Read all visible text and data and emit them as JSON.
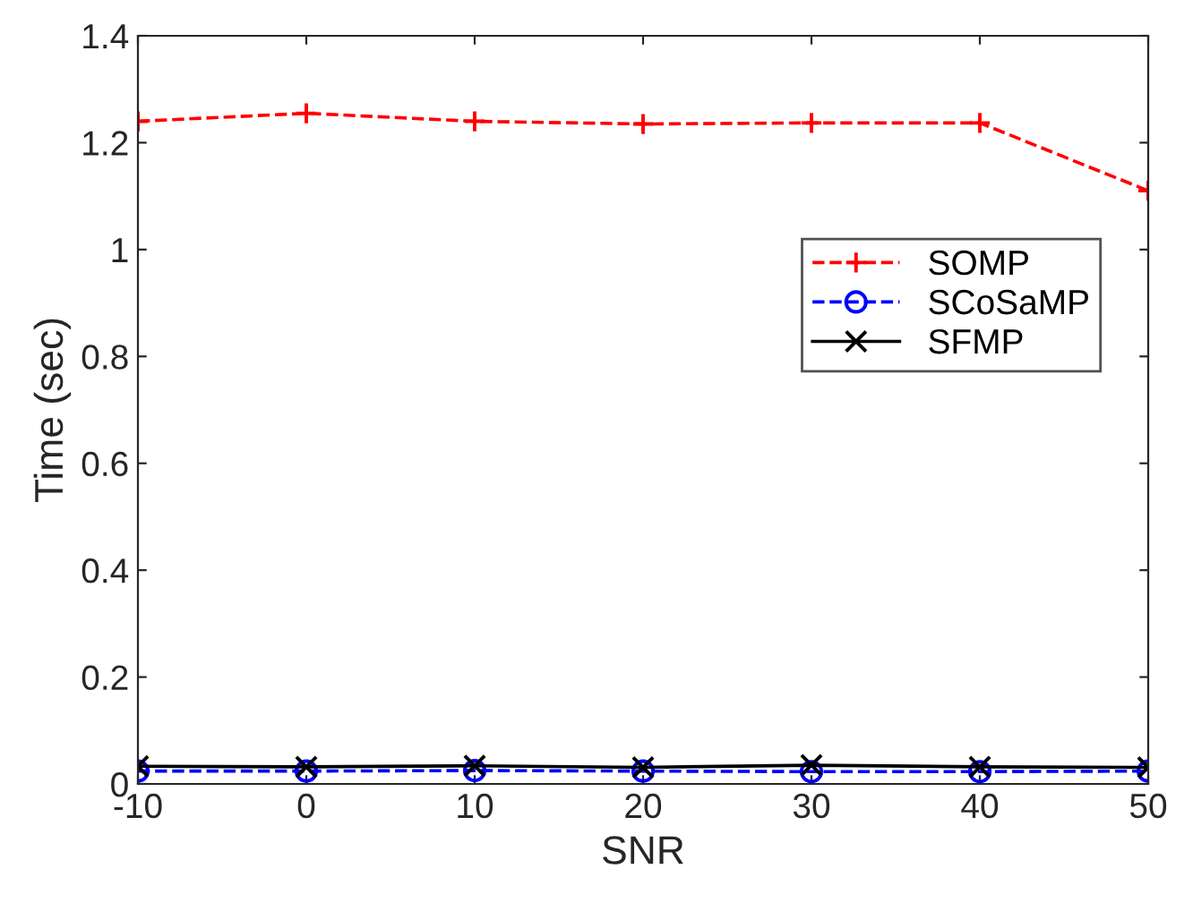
{
  "chart_data": {
    "type": "line",
    "xlabel": "SNR",
    "ylabel": "Time (sec)",
    "x": [
      -10,
      0,
      10,
      20,
      30,
      40,
      50
    ],
    "xlim": [
      -10,
      50
    ],
    "xticks": [
      -10,
      0,
      10,
      20,
      30,
      40,
      50
    ],
    "ylim": [
      0,
      1.4
    ],
    "yticks": [
      0,
      0.2,
      0.4,
      0.6,
      0.8,
      1,
      1.2,
      1.4
    ],
    "grid": false,
    "legend": "right",
    "series": [
      {
        "name": "SOMP",
        "color": "#ff0000",
        "marker": "plus",
        "line_style": "dashed",
        "values": [
          1.24,
          1.255,
          1.24,
          1.235,
          1.237,
          1.237,
          1.11
        ]
      },
      {
        "name": "SCoSaMP",
        "color": "#0000ff",
        "marker": "circle",
        "line_style": "dashed",
        "values": [
          0.024,
          0.024,
          0.025,
          0.024,
          0.023,
          0.023,
          0.024
        ]
      },
      {
        "name": "SFMP",
        "color": "#000000",
        "marker": "cross",
        "line_style": "solid",
        "values": [
          0.033,
          0.032,
          0.034,
          0.031,
          0.035,
          0.032,
          0.031
        ]
      }
    ]
  }
}
